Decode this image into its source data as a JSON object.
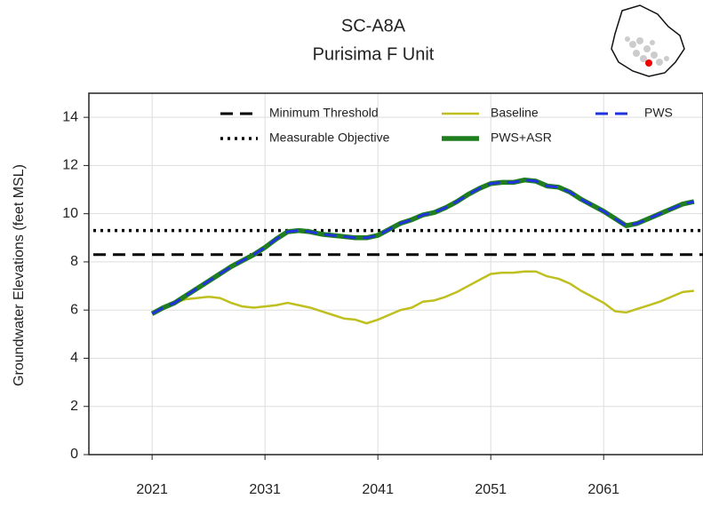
{
  "chart_data": {
    "type": "line",
    "title": "SC-A8A",
    "subtitle": "Purisima F Unit",
    "y_label": "Groundwater Elevations (feet MSL)",
    "x": [
      2021,
      2022,
      2023,
      2024,
      2025,
      2026,
      2027,
      2028,
      2029,
      2030,
      2031,
      2032,
      2033,
      2034,
      2035,
      2036,
      2037,
      2038,
      2039,
      2040,
      2041,
      2042,
      2043,
      2044,
      2045,
      2046,
      2047,
      2048,
      2049,
      2050,
      2051,
      2052,
      2053,
      2054,
      2055,
      2056,
      2057,
      2058,
      2059,
      2060,
      2061,
      2062,
      2063,
      2064,
      2065,
      2066,
      2067,
      2068,
      2069
    ],
    "series": [
      {
        "name": "Minimum Threshold",
        "color": "#000000",
        "style": "dashed",
        "value": 8.3
      },
      {
        "name": "Measurable Objective",
        "color": "#000000",
        "style": "dotted",
        "value": 9.3
      },
      {
        "name": "Baseline",
        "color": "#bfbf1f",
        "style": "solid",
        "values": [
          5.85,
          6.1,
          6.3,
          6.45,
          6.5,
          6.55,
          6.5,
          6.3,
          6.15,
          6.1,
          6.15,
          6.2,
          6.3,
          6.2,
          6.1,
          5.95,
          5.8,
          5.65,
          5.6,
          5.45,
          5.6,
          5.8,
          6.0,
          6.1,
          6.35,
          6.4,
          6.55,
          6.75,
          7.0,
          7.25,
          7.5,
          7.55,
          7.55,
          7.6,
          7.6,
          7.4,
          7.3,
          7.1,
          6.8,
          6.55,
          6.3,
          5.95,
          5.9,
          6.05,
          6.2,
          6.35,
          6.55,
          6.75,
          6.8
        ]
      },
      {
        "name": "PWS+ASR",
        "color": "#1f7f1f",
        "style": "thick",
        "values": [
          5.85,
          6.1,
          6.3,
          6.6,
          6.9,
          7.2,
          7.5,
          7.8,
          8.05,
          8.3,
          8.6,
          8.95,
          9.25,
          9.3,
          9.25,
          9.15,
          9.1,
          9.05,
          9.0,
          9.0,
          9.1,
          9.35,
          9.6,
          9.75,
          9.95,
          10.05,
          10.25,
          10.5,
          10.8,
          11.05,
          11.25,
          11.3,
          11.3,
          11.4,
          11.35,
          11.15,
          11.1,
          10.9,
          10.6,
          10.35,
          10.1,
          9.8,
          9.5,
          9.6,
          9.8,
          10.0,
          10.2,
          10.4,
          10.5
        ]
      },
      {
        "name": "PWS",
        "color": "#2233dd",
        "style": "dashed",
        "values": [
          5.85,
          6.1,
          6.3,
          6.6,
          6.9,
          7.2,
          7.5,
          7.8,
          8.05,
          8.3,
          8.6,
          8.95,
          9.25,
          9.3,
          9.25,
          9.15,
          9.1,
          9.05,
          9.0,
          9.0,
          9.1,
          9.35,
          9.6,
          9.75,
          9.95,
          10.05,
          10.25,
          10.5,
          10.8,
          11.05,
          11.25,
          11.3,
          11.3,
          11.4,
          11.35,
          11.15,
          11.1,
          10.9,
          10.6,
          10.35,
          10.1,
          9.8,
          9.5,
          9.6,
          9.8,
          10.0,
          10.2,
          10.4,
          10.5
        ]
      }
    ],
    "xlim": [
      2015.4,
      2069.8
    ],
    "xticks": [
      2021,
      2031,
      2041,
      2051,
      2061
    ],
    "ylim": [
      0,
      15
    ],
    "yticks": [
      0,
      2,
      4,
      6,
      8,
      10,
      12,
      14
    ],
    "grid": true
  }
}
